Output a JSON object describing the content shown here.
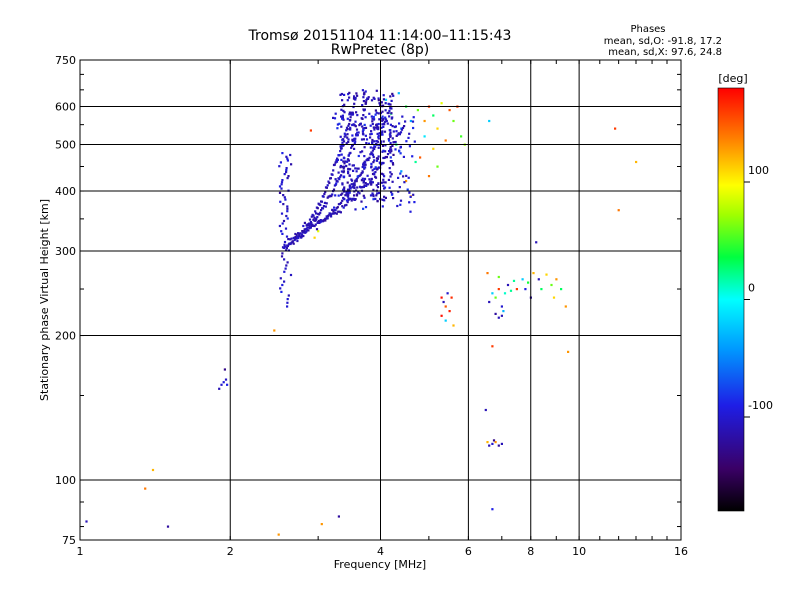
{
  "chart_data": {
    "type": "scatter",
    "title": "Tromsø 20151104 11:14:00–11:15:43",
    "subtitle": "RwPretec (8p)",
    "xlabel": "Frequency [MHz]",
    "ylabel": "Stationary phase Virtual Height [km]",
    "x_scale": "log",
    "y_scale": "log",
    "xlim": [
      1,
      16
    ],
    "ylim": [
      75,
      750
    ],
    "x_ticks": [
      1,
      2,
      4,
      6,
      8,
      10,
      16
    ],
    "y_ticks": [
      75,
      100,
      200,
      300,
      400,
      500,
      600,
      750
    ],
    "x_gridlines": [
      2,
      4,
      6,
      8,
      10
    ],
    "y_gridlines": [
      100,
      200,
      300,
      400,
      500,
      600
    ],
    "grid": true,
    "info_header": "Phases",
    "info_line1": "mean, sd,O: -91.8, 17.2",
    "info_line2": "mean, sd,X:  97.6, 24.8",
    "colorbar": {
      "label": "[deg]",
      "range": [
        -180,
        180
      ],
      "ticks": [
        "100",
        "0",
        "-100"
      ],
      "tick_values": [
        100,
        0,
        -100
      ]
    },
    "points": [
      [
        1.03,
        82,
        -110
      ],
      [
        1.35,
        96,
        140
      ],
      [
        1.4,
        105,
        120
      ],
      [
        1.5,
        80,
        -120
      ],
      [
        1.9,
        155,
        -110
      ],
      [
        1.92,
        158,
        -100
      ],
      [
        1.94,
        160,
        -95
      ],
      [
        1.96,
        162,
        -105
      ],
      [
        1.95,
        170,
        -130
      ],
      [
        1.97,
        158,
        -90
      ],
      [
        2.45,
        205,
        130
      ],
      [
        2.5,
        77,
        130
      ],
      [
        2.9,
        535,
        160
      ],
      [
        3.05,
        81,
        130
      ],
      [
        3.3,
        84,
        -120
      ],
      [
        2.95,
        320,
        110
      ],
      [
        3.0,
        330,
        90
      ],
      [
        6.6,
        560,
        -20
      ],
      [
        6.7,
        87,
        -90
      ],
      [
        6.5,
        140,
        -110
      ],
      [
        6.55,
        120,
        120
      ],
      [
        6.7,
        190,
        160
      ],
      [
        9.4,
        230,
        130
      ],
      [
        9.5,
        185,
        130
      ],
      [
        11.8,
        540,
        160
      ],
      [
        12.0,
        365,
        140
      ],
      [
        13.0,
        460,
        120
      ],
      [
        8.2,
        313,
        -110
      ],
      [
        5.3,
        240,
        175
      ],
      [
        5.35,
        235,
        -110
      ],
      [
        5.4,
        230,
        150
      ],
      [
        5.45,
        245,
        -100
      ],
      [
        5.3,
        220,
        175
      ],
      [
        5.5,
        225,
        170
      ],
      [
        5.4,
        215,
        -20
      ],
      [
        5.55,
        240,
        165
      ],
      [
        5.6,
        210,
        120
      ],
      [
        6.6,
        235,
        -110
      ],
      [
        6.7,
        245,
        -20
      ],
      [
        6.8,
        240,
        60
      ],
      [
        6.9,
        250,
        160
      ],
      [
        7.0,
        230,
        -100
      ],
      [
        7.1,
        245,
        10
      ],
      [
        7.2,
        255,
        -110
      ],
      [
        7.3,
        248,
        20
      ],
      [
        7.5,
        250,
        160
      ],
      [
        7.7,
        262,
        -20
      ],
      [
        7.9,
        258,
        40
      ],
      [
        8.1,
        270,
        120
      ],
      [
        8.3,
        262,
        -110
      ],
      [
        8.6,
        268,
        110
      ],
      [
        8.8,
        255,
        60
      ],
      [
        9.0,
        262,
        130
      ],
      [
        9.2,
        250,
        30
      ],
      [
        6.55,
        270,
        140
      ],
      [
        6.9,
        265,
        60
      ],
      [
        7.4,
        260,
        20
      ],
      [
        7.8,
        250,
        -90
      ],
      [
        8.0,
        240,
        -120
      ],
      [
        8.4,
        250,
        30
      ],
      [
        8.9,
        240,
        110
      ],
      [
        7.0,
        220,
        -110
      ],
      [
        6.8,
        222,
        -120
      ],
      [
        6.9,
        218,
        -110
      ],
      [
        7.05,
        225,
        -30
      ],
      [
        6.6,
        118,
        -110
      ],
      [
        6.7,
        119,
        -100
      ],
      [
        6.8,
        120,
        130
      ],
      [
        6.9,
        118,
        -120
      ],
      [
        7.0,
        119,
        -110
      ],
      [
        6.75,
        121,
        -130
      ],
      [
        4.1,
        620,
        -20
      ],
      [
        4.2,
        580,
        30
      ],
      [
        4.35,
        640,
        -30
      ],
      [
        4.5,
        600,
        40
      ],
      [
        4.6,
        560,
        -40
      ],
      [
        4.75,
        590,
        60
      ],
      [
        4.9,
        560,
        130
      ],
      [
        5.0,
        600,
        160
      ],
      [
        5.1,
        575,
        30
      ],
      [
        5.3,
        610,
        90
      ],
      [
        5.5,
        590,
        150
      ],
      [
        5.6,
        560,
        60
      ],
      [
        5.7,
        600,
        160
      ],
      [
        5.8,
        520,
        50
      ],
      [
        5.9,
        500,
        70
      ],
      [
        5.2,
        540,
        110
      ],
      [
        5.4,
        510,
        140
      ],
      [
        4.8,
        470,
        150
      ],
      [
        4.9,
        520,
        -10
      ],
      [
        5.1,
        490,
        110
      ],
      [
        4.4,
        440,
        -40
      ],
      [
        4.5,
        420,
        130
      ],
      [
        4.6,
        390,
        130
      ],
      [
        4.7,
        460,
        20
      ],
      [
        5.0,
        430,
        140
      ],
      [
        5.2,
        450,
        60
      ],
      [
        4.3,
        500,
        30
      ],
      [
        4.4,
        540,
        -60
      ]
    ]
  }
}
